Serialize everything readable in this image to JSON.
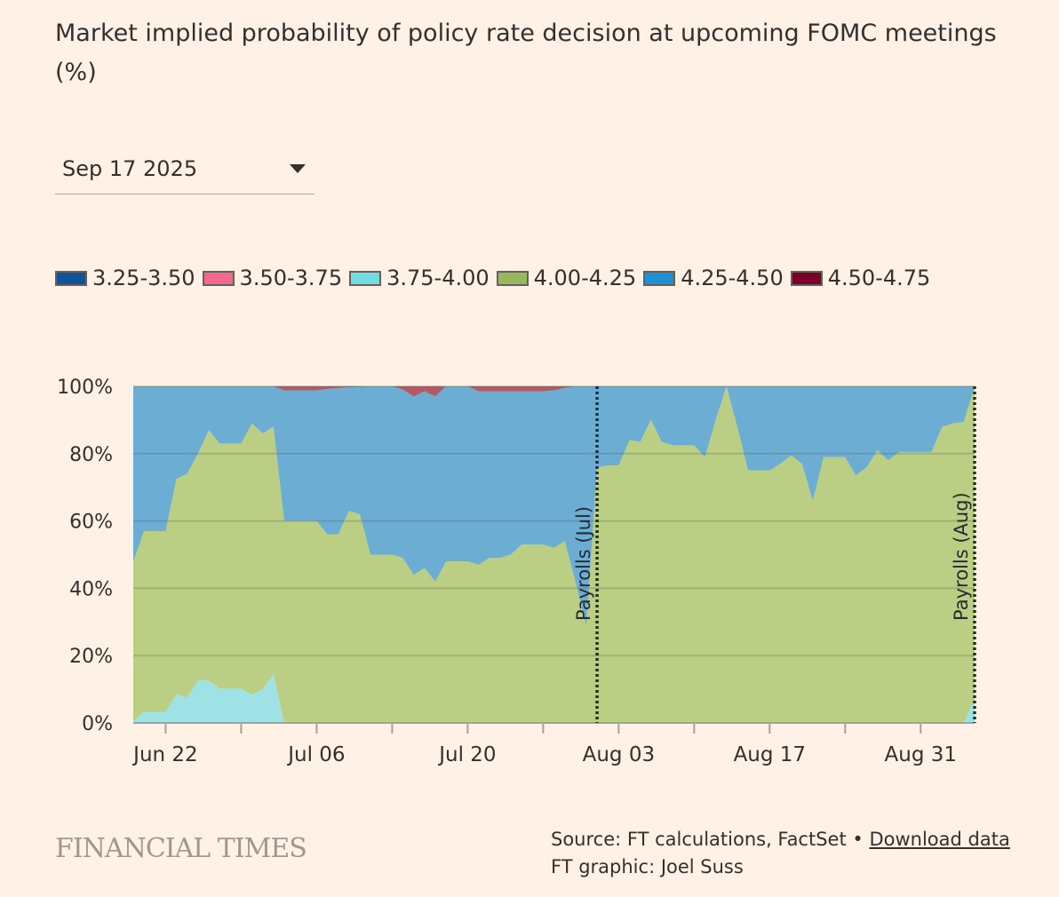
{
  "chart_data": {
    "type": "area",
    "stacked": true,
    "title": "Market implied probability of policy rate decision at upcoming FOMC meetings (%)",
    "xlabel": "",
    "ylabel": "",
    "ylim": [
      0,
      100
    ],
    "yticks": [
      0,
      20,
      40,
      60,
      80,
      100
    ],
    "ytick_labels": [
      "0%",
      "20%",
      "40%",
      "60%",
      "80%",
      "100%"
    ],
    "xtick_labels": [
      {
        "label": "Jun 22",
        "date": "Jun 22"
      },
      {
        "label": "Jul 06",
        "date": "Jul 06"
      },
      {
        "label": "Jul 20",
        "date": "Jul 20"
      },
      {
        "label": "Aug 03",
        "date": "Aug 03"
      },
      {
        "label": "Aug 17",
        "date": "Aug 17"
      },
      {
        "label": "Aug 31",
        "date": "Aug 31"
      }
    ],
    "grid": true,
    "legend_position": "top-left",
    "x": [
      "Jun 19",
      "Jun 20",
      "Jun 21",
      "Jun 22",
      "Jun 23",
      "Jun 24",
      "Jun 25",
      "Jun 26",
      "Jun 27",
      "Jun 28",
      "Jun 29",
      "Jun 30",
      "Jul 01",
      "Jul 02",
      "Jul 03",
      "Jul 04",
      "Jul 05",
      "Jul 06",
      "Jul 07",
      "Jul 08",
      "Jul 09",
      "Jul 10",
      "Jul 11",
      "Jul 12",
      "Jul 13",
      "Jul 14",
      "Jul 15",
      "Jul 16",
      "Jul 17",
      "Jul 18",
      "Jul 19",
      "Jul 20",
      "Jul 21",
      "Jul 22",
      "Jul 23",
      "Jul 24",
      "Jul 25",
      "Jul 26",
      "Jul 27",
      "Jul 28",
      "Jul 29",
      "Jul 30",
      "Jul 31",
      "Aug 01",
      "Aug 02",
      "Aug 03",
      "Aug 04",
      "Aug 05",
      "Aug 06",
      "Aug 07",
      "Aug 08",
      "Aug 09",
      "Aug 10",
      "Aug 11",
      "Aug 12",
      "Aug 13",
      "Aug 14",
      "Aug 15",
      "Aug 16",
      "Aug 17",
      "Aug 18",
      "Aug 19",
      "Aug 20",
      "Aug 21",
      "Aug 22",
      "Aug 23",
      "Aug 24",
      "Aug 25",
      "Aug 26",
      "Aug 27",
      "Aug 28",
      "Aug 29",
      "Aug 30",
      "Aug 31",
      "Sep 01",
      "Sep 02",
      "Sep 03",
      "Sep 04",
      "Sep 05"
    ],
    "series": [
      {
        "name": "3.25-3.50",
        "color": "#0f5499",
        "fill": "#0f5499",
        "values": [
          0,
          0,
          0,
          0,
          0,
          0,
          0,
          0,
          0,
          0,
          0,
          0,
          0,
          0,
          0,
          0,
          0,
          0,
          0,
          0,
          0,
          0,
          0,
          0,
          0,
          0,
          0,
          0,
          0,
          0,
          0,
          0,
          0,
          0,
          0,
          0,
          0,
          0,
          0,
          0,
          0,
          0,
          0,
          0,
          0,
          0,
          0,
          0,
          0,
          0,
          0,
          0,
          0,
          0,
          0,
          0,
          0,
          0,
          0,
          0,
          0,
          0,
          0,
          0,
          0,
          0,
          0,
          0,
          0,
          0,
          0,
          0,
          0,
          0,
          0,
          0,
          0,
          0,
          0
        ]
      },
      {
        "name": "3.50-3.75",
        "color": "#f2688f",
        "fill": "#f2688f",
        "values": [
          0,
          0,
          0,
          0,
          0,
          0,
          0,
          0,
          0,
          0,
          0,
          0,
          0,
          0,
          0,
          0,
          0,
          0,
          0,
          0,
          0,
          0,
          0,
          0,
          0,
          0,
          0,
          0,
          0,
          0,
          0,
          0,
          0,
          0,
          0,
          0,
          0,
          0,
          0,
          0,
          0,
          0,
          0,
          0,
          0,
          0,
          0,
          0,
          0,
          0,
          0,
          0,
          0,
          0,
          0,
          0,
          0,
          0,
          0,
          0,
          0,
          0,
          0,
          0,
          0,
          0,
          0,
          0,
          0,
          0,
          0,
          0,
          0,
          0,
          0,
          0,
          0,
          0,
          0
        ]
      },
      {
        "name": "3.75-4.00",
        "color": "#72dce3",
        "fill": "#9fe2e6",
        "values": [
          0.5,
          3.3,
          3.3,
          3.3,
          8.6,
          7.5,
          12.6,
          12.6,
          10.2,
          10.2,
          10.2,
          8.4,
          10,
          14.5,
          0,
          0,
          0,
          0,
          0,
          0,
          0,
          0,
          0,
          0,
          0,
          0,
          0,
          0,
          0,
          0,
          0,
          0,
          0,
          0,
          0,
          0,
          0,
          0,
          0,
          0,
          0,
          0,
          0,
          0,
          0,
          0,
          0,
          0,
          0,
          0,
          0,
          0,
          0,
          0,
          0,
          0,
          0,
          0,
          0,
          0,
          0,
          0,
          0,
          0,
          0,
          0,
          0,
          0,
          0,
          0,
          0,
          0,
          0,
          0,
          0,
          0,
          0,
          0,
          7
        ]
      },
      {
        "name": "4.00-4.25",
        "color": "#96b959",
        "fill": "#bacf83",
        "values": [
          47.5,
          53.7,
          53.7,
          53.7,
          63.9,
          66.5,
          67.4,
          74.4,
          72.8,
          72.8,
          72.8,
          80.6,
          76,
          73.5,
          60,
          60,
          60,
          60,
          56,
          56,
          63,
          62,
          50,
          50,
          50,
          49,
          44,
          46,
          42,
          48,
          48,
          48,
          47,
          49,
          49,
          50,
          53,
          53,
          53,
          52,
          54,
          42,
          29,
          76,
          76.5,
          76.5,
          84,
          83.5,
          90,
          83.5,
          82.5,
          82.5,
          82.5,
          79,
          90,
          100,
          88,
          75,
          75,
          75,
          77,
          79.5,
          77,
          66,
          79,
          79,
          79,
          73.5,
          76,
          81,
          78,
          80.5,
          80.5,
          80.5,
          80.5,
          88,
          89,
          89.5,
          93
        ]
      },
      {
        "name": "4.25-4.50",
        "color": "#1f8fd6",
        "fill": "#6badd3",
        "values": [
          52,
          43,
          43,
          43,
          27.5,
          26,
          20,
          13,
          17,
          17,
          17,
          11,
          14,
          12,
          38.8,
          38.8,
          38.8,
          38.8,
          43.2,
          43.5,
          36.7,
          37.8,
          50,
          50,
          50,
          50,
          53,
          52.5,
          55,
          52,
          52,
          52,
          51.5,
          49.5,
          49.5,
          48.5,
          45.5,
          45.5,
          45.5,
          46.8,
          45.5,
          58,
          71,
          24,
          23.5,
          23.5,
          16,
          16.5,
          10,
          16.5,
          17.5,
          17.5,
          17.5,
          21,
          10,
          0,
          12,
          25,
          25,
          25,
          23,
          20.5,
          23,
          34,
          21,
          21,
          21,
          26.5,
          24,
          19,
          22,
          19.5,
          19.5,
          19.5,
          19.5,
          12,
          11,
          10.5,
          0
        ]
      },
      {
        "name": "4.50-4.75",
        "color": "#7a0029",
        "fill": "#b25a66",
        "values": [
          0,
          0,
          0,
          0,
          0,
          0,
          0,
          0,
          0,
          0,
          0,
          0,
          0,
          0,
          1.2,
          1.2,
          1.2,
          1.2,
          0.8,
          0.5,
          0.3,
          0.2,
          0,
          0,
          0,
          1,
          3,
          1.5,
          3,
          0,
          0,
          0,
          1.5,
          1.5,
          1.5,
          1.5,
          1.5,
          1.5,
          1.5,
          1.2,
          0.5,
          0,
          0,
          0,
          0,
          0,
          0,
          0,
          0,
          0,
          0,
          0,
          0,
          0,
          0,
          0,
          0,
          0,
          0,
          0,
          0,
          0,
          0,
          0,
          0,
          0,
          0,
          0,
          0,
          0,
          0,
          0,
          0,
          0,
          0,
          0,
          0,
          0,
          0
        ]
      }
    ],
    "annotations": [
      {
        "label": "Payrolls (Jul)",
        "date": "Aug 01"
      },
      {
        "label": "Payrolls (Aug)",
        "date": "Sep 05"
      }
    ]
  },
  "selector": {
    "selected": "Sep 17 2025"
  },
  "footer": {
    "brand": "FINANCIAL TIMES",
    "source": "Source: FT calculations, FactSet •",
    "download": "Download data",
    "credit": "FT graphic: Joel Suss"
  }
}
